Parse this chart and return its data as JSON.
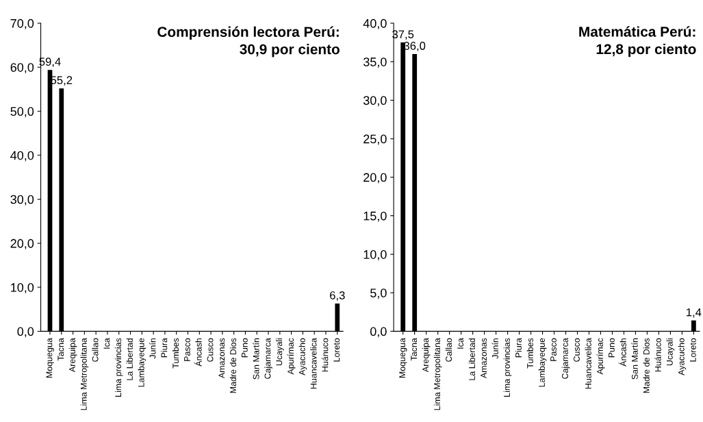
{
  "chart_data": [
    {
      "type": "bar",
      "title": "Comprensión lectora Perú:\n30,9 por ciento",
      "categories": [
        "Moquegua",
        "Tacna",
        "Arequipa",
        "Lima Metropolitana",
        "Callao",
        "Ica",
        "Lima provincias",
        "La Libertad",
        "Lambayeque",
        "Junín",
        "Piura",
        "Tumbes",
        "Pasco",
        "Áncash",
        "Cusco",
        "Amazonas",
        "Madre de Dios",
        "Puno",
        "San Martín",
        "Cajamarca",
        "Ucayali",
        "Apurímac",
        "Ayacucho",
        "Huancavelica",
        "Huánuco",
        "Loreto"
      ],
      "series": [
        {
          "color": "#000000",
          "values": [
            59.4,
            55.2,
            null,
            null,
            null,
            null,
            null,
            null,
            null,
            null,
            null,
            null,
            null,
            null,
            null,
            null,
            null,
            null,
            null,
            null,
            null,
            null,
            null,
            null,
            null,
            6.3
          ],
          "value_labels": [
            "59,4",
            "55,2",
            null,
            null,
            null,
            null,
            null,
            null,
            null,
            null,
            null,
            null,
            null,
            null,
            null,
            null,
            null,
            null,
            null,
            null,
            null,
            null,
            null,
            null,
            null,
            "6,3"
          ]
        }
      ],
      "ylim": [
        0,
        70
      ],
      "yticks": [
        {
          "value": 0,
          "label": "0,0"
        },
        {
          "value": 10,
          "label": "10,0"
        },
        {
          "value": 20,
          "label": "20,0"
        },
        {
          "value": 30,
          "label": "30,0"
        },
        {
          "value": 40,
          "label": "40,0"
        },
        {
          "value": 50,
          "label": "50,0"
        },
        {
          "value": 60,
          "label": "60,0"
        },
        {
          "value": 70,
          "label": "70,0"
        }
      ],
      "grid": false,
      "legend": false
    },
    {
      "type": "bar",
      "title": "Matemática Perú:\n12,8 por ciento",
      "categories": [
        "Moquegua",
        "Tacna",
        "Arequipa",
        "Lima Metropolitana",
        "Callao",
        "Ica",
        "La Libertad",
        "Amazonas",
        "Junín",
        "Lima provincias",
        "Piura",
        "Tumbes",
        "Lambayeque",
        "Pasco",
        "Cajamarca",
        "Cusco",
        "Huancavelica",
        "Apurímac",
        "Puno",
        "Áncash",
        "San Martín",
        "Madre de Dios",
        "Huánuco",
        "Ucayali",
        "Ayacucho",
        "Loreto"
      ],
      "series": [
        {
          "color": "#000000",
          "values": [
            37.5,
            36.0,
            null,
            null,
            null,
            null,
            null,
            null,
            null,
            null,
            null,
            null,
            null,
            null,
            null,
            null,
            null,
            null,
            null,
            null,
            null,
            null,
            null,
            null,
            null,
            1.4
          ],
          "value_labels": [
            "37,5",
            "36,0",
            null,
            null,
            null,
            null,
            null,
            null,
            null,
            null,
            null,
            null,
            null,
            null,
            null,
            null,
            null,
            null,
            null,
            null,
            null,
            null,
            null,
            null,
            null,
            "1,4"
          ]
        }
      ],
      "ylim": [
        0,
        40
      ],
      "yticks": [
        {
          "value": 0,
          "label": "0,0"
        },
        {
          "value": 5,
          "label": "5,0"
        },
        {
          "value": 10,
          "label": "10,0"
        },
        {
          "value": 15,
          "label": "15,0"
        },
        {
          "value": 20,
          "label": "20,0"
        },
        {
          "value": 25,
          "label": "25,0"
        },
        {
          "value": 30,
          "label": "30,0"
        },
        {
          "value": 35,
          "label": "35,0"
        },
        {
          "value": 40,
          "label": "40,0"
        }
      ],
      "grid": false,
      "legend": false
    }
  ]
}
